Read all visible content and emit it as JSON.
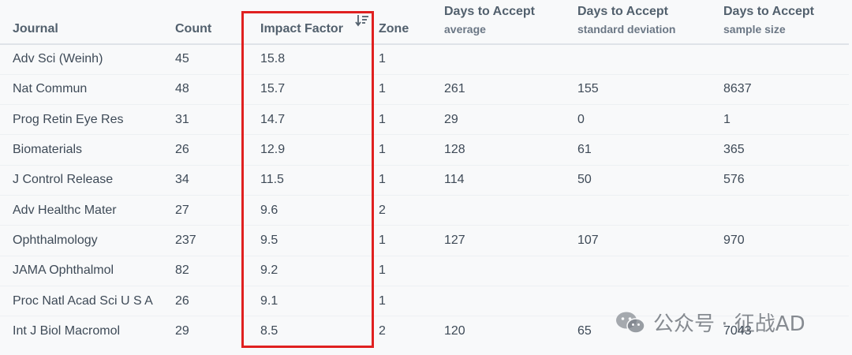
{
  "columns": {
    "journal": "Journal",
    "count": "Count",
    "impact_factor": "Impact Factor",
    "zone": "Zone",
    "avg_main": "Days to Accept",
    "avg_sub": "average",
    "sd_main": "Days to Accept",
    "sd_sub": "standard deviation",
    "n_main": "Days to Accept",
    "n_sub": "sample size"
  },
  "sort": {
    "column": "impact_factor",
    "direction": "descending",
    "icon": "sort-descending-icon"
  },
  "highlight_color": "#e02020",
  "rows": [
    {
      "journal": "Adv Sci (Weinh)",
      "count": "45",
      "impact_factor": "15.8",
      "zone": "1",
      "avg": "",
      "sd": "",
      "n": ""
    },
    {
      "journal": "Nat Commun",
      "count": "48",
      "impact_factor": "15.7",
      "zone": "1",
      "avg": "261",
      "sd": "155",
      "n": "8637"
    },
    {
      "journal": "Prog Retin Eye Res",
      "count": "31",
      "impact_factor": "14.7",
      "zone": "1",
      "avg": "29",
      "sd": "0",
      "n": "1"
    },
    {
      "journal": "Biomaterials",
      "count": "26",
      "impact_factor": "12.9",
      "zone": "1",
      "avg": "128",
      "sd": "61",
      "n": "365"
    },
    {
      "journal": "J Control Release",
      "count": "34",
      "impact_factor": "11.5",
      "zone": "1",
      "avg": "114",
      "sd": "50",
      "n": "576"
    },
    {
      "journal": "Adv Healthc Mater",
      "count": "27",
      "impact_factor": "9.6",
      "zone": "2",
      "avg": "",
      "sd": "",
      "n": ""
    },
    {
      "journal": "Ophthalmology",
      "count": "237",
      "impact_factor": "9.5",
      "zone": "1",
      "avg": "127",
      "sd": "107",
      "n": "970"
    },
    {
      "journal": "JAMA Ophthalmol",
      "count": "82",
      "impact_factor": "9.2",
      "zone": "1",
      "avg": "",
      "sd": "",
      "n": ""
    },
    {
      "journal": "Proc Natl Acad Sci U S A",
      "count": "26",
      "impact_factor": "9.1",
      "zone": "1",
      "avg": "",
      "sd": "",
      "n": ""
    },
    {
      "journal": "Int J Biol Macromol",
      "count": "29",
      "impact_factor": "8.5",
      "zone": "2",
      "avg": "120",
      "sd": "65",
      "n": "7043"
    }
  ],
  "watermark": {
    "text": "公众号 · 征战AD",
    "icon": "wechat-icon"
  }
}
